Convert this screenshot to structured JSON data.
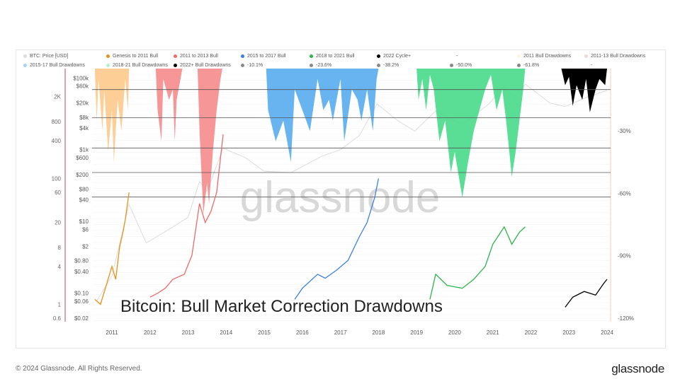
{
  "chart_data": {
    "type": "area",
    "title": "Bitcoin: Bull Market Correction Drawdowns",
    "watermark": "glassnode",
    "legend": [
      {
        "name": "BTC: Price [USD]",
        "color": "#dddddd"
      },
      {
        "name": "Genesis to 2011 Bull",
        "color": "#e8911c"
      },
      {
        "name": "2011 to 2013 Bull",
        "color": "#ec6a6a"
      },
      {
        "name": "2015 to 2017 Bull",
        "color": "#3d7fde"
      },
      {
        "name": "2018 to 2021 Bull",
        "color": "#2cb34a"
      },
      {
        "name": "2022 Cycle+",
        "color": "#000000"
      },
      {
        "name": "-",
        "color": "#ffffff"
      },
      {
        "name": "2011 Bull Drawdowns",
        "color": "#fdf3d8"
      },
      {
        "name": "2011-13 Bull Drawdowns",
        "color": "#fbd3d3"
      },
      {
        "name": "2015-17 Bull Drawdowns",
        "color": "#a9d2f5"
      },
      {
        "name": "2018-21 Bull Drawdowns",
        "color": "#b6f0cb"
      },
      {
        "name": "2022+ Bull Drawdowns",
        "color": "#000000"
      },
      {
        "name": "-10.1%",
        "color": "#888888"
      },
      {
        "name": "-23.6%",
        "color": "#888888"
      },
      {
        "name": "-38.2%",
        "color": "#888888"
      },
      {
        "name": "-50.0%",
        "color": "#888888"
      },
      {
        "name": "-61.8%",
        "color": "#888888"
      },
      {
        "name": "-",
        "color": "#ffffff"
      }
    ],
    "x_ticks": [
      "2011",
      "2012",
      "2013",
      "2014",
      "2015",
      "2016",
      "2017",
      "2018",
      "2019",
      "2020",
      "2021",
      "2022",
      "2023",
      "2024"
    ],
    "y_left_multiple_ticks": [
      "2K",
      "800",
      "400",
      "100",
      "60",
      "20",
      "8",
      "4",
      "1",
      "0.6"
    ],
    "y_left_multiple_values": [
      2000,
      800,
      400,
      100,
      60,
      20,
      8,
      4,
      1,
      0.6
    ],
    "y_price_ticks": [
      "$100k",
      "$60k",
      "$20k",
      "$8k",
      "$4k",
      "$1k",
      "$600",
      "$200",
      "$80",
      "$40",
      "$10",
      "$6",
      "$2",
      "$0.80",
      "$0.40",
      "$0.10",
      "$0.06",
      "$0.02"
    ],
    "y_price_values": [
      100000,
      60000,
      20000,
      8000,
      4000,
      1000,
      600,
      200,
      80,
      40,
      10,
      6,
      2,
      0.8,
      0.4,
      0.1,
      0.06,
      0.02
    ],
    "y_right_ticks": [
      "-30%",
      "-60%",
      "-90%",
      "-120%"
    ],
    "y_right_values": [
      -30,
      -60,
      -90,
      -120
    ],
    "fib_levels": [
      -10.1,
      -23.6,
      -38.2,
      -50.0,
      -61.8
    ],
    "price": [
      [
        2010.6,
        0.06
      ],
      [
        2011.0,
        0.3
      ],
      [
        2011.45,
        30
      ],
      [
        2011.9,
        2.5
      ],
      [
        2012.5,
        6
      ],
      [
        2013.0,
        13
      ],
      [
        2013.3,
        130
      ],
      [
        2013.5,
        70
      ],
      [
        2013.92,
        1100
      ],
      [
        2014.5,
        600
      ],
      [
        2015.0,
        250
      ],
      [
        2015.7,
        230
      ],
      [
        2016.5,
        650
      ],
      [
        2017.0,
        1000
      ],
      [
        2017.5,
        2500
      ],
      [
        2017.96,
        19000
      ],
      [
        2018.5,
        6500
      ],
      [
        2018.95,
        3300
      ],
      [
        2019.5,
        12000
      ],
      [
        2020.2,
        5000
      ],
      [
        2020.9,
        19000
      ],
      [
        2021.3,
        60000
      ],
      [
        2021.55,
        30000
      ],
      [
        2021.86,
        67000
      ],
      [
        2022.5,
        20000
      ],
      [
        2022.9,
        16000
      ],
      [
        2023.5,
        30000
      ],
      [
        2024.0,
        45000
      ]
    ],
    "cycles": [
      {
        "name": "Genesis to 2011 Bull",
        "color": "#e8911c",
        "points": [
          [
            2010.55,
            1.2
          ],
          [
            2010.7,
            1
          ],
          [
            2010.85,
            2
          ],
          [
            2011.0,
            4
          ],
          [
            2011.1,
            2.5
          ],
          [
            2011.2,
            8
          ],
          [
            2011.3,
            15
          ],
          [
            2011.35,
            22
          ],
          [
            2011.45,
            60
          ]
        ]
      },
      {
        "name": "2011 to 2013 Bull",
        "color": "#ec6a6a",
        "points": [
          [
            2012.0,
            1.3
          ],
          [
            2012.2,
            1.5
          ],
          [
            2012.4,
            1.8
          ],
          [
            2012.6,
            2.5
          ],
          [
            2012.9,
            3
          ],
          [
            2013.1,
            6
          ],
          [
            2013.3,
            40
          ],
          [
            2013.45,
            20
          ],
          [
            2013.6,
            30
          ],
          [
            2013.75,
            60
          ],
          [
            2013.92,
            500
          ]
        ]
      },
      {
        "name": "2015 to 2017 Bull",
        "color": "#3d7fde",
        "points": [
          [
            2015.8,
            1.2
          ],
          [
            2016.0,
            1.8
          ],
          [
            2016.4,
            3
          ],
          [
            2016.6,
            2.6
          ],
          [
            2016.9,
            3.5
          ],
          [
            2017.2,
            5
          ],
          [
            2017.5,
            12
          ],
          [
            2017.7,
            20
          ],
          [
            2017.9,
            50
          ],
          [
            2018.0,
            100
          ]
        ]
      },
      {
        "name": "2018 to 2021 Bull",
        "color": "#2cb34a",
        "points": [
          [
            2019.35,
            1.2
          ],
          [
            2019.5,
            3
          ],
          [
            2019.8,
            2
          ],
          [
            2020.2,
            1.8
          ],
          [
            2020.5,
            2.5
          ],
          [
            2020.8,
            4
          ],
          [
            2021.0,
            9
          ],
          [
            2021.3,
            17
          ],
          [
            2021.5,
            9
          ],
          [
            2021.7,
            14
          ],
          [
            2021.85,
            17
          ]
        ]
      },
      {
        "name": "2022 Cycle+",
        "color": "#000000",
        "points": [
          [
            2022.9,
            0.9
          ],
          [
            2023.1,
            1.3
          ],
          [
            2023.4,
            1.6
          ],
          [
            2023.7,
            1.4
          ],
          [
            2023.9,
            2.1
          ],
          [
            2024.0,
            2.5
          ]
        ]
      }
    ],
    "drawdowns": [
      {
        "name": "2011 Bull Drawdowns",
        "color": "#fdc98a",
        "points": [
          [
            2010.55,
            0
          ],
          [
            2010.6,
            -25
          ],
          [
            2010.65,
            -5
          ],
          [
            2010.75,
            -30
          ],
          [
            2010.8,
            -10
          ],
          [
            2010.9,
            -40
          ],
          [
            2011.0,
            -20
          ],
          [
            2011.05,
            -45
          ],
          [
            2011.15,
            -15
          ],
          [
            2011.25,
            -30
          ],
          [
            2011.35,
            -5
          ],
          [
            2011.42,
            -20
          ],
          [
            2011.45,
            0
          ]
        ]
      },
      {
        "name": "2011-13 Bull Drawdowns",
        "color": "#f58b8b",
        "points": [
          [
            2012.15,
            0
          ],
          [
            2012.2,
            -20
          ],
          [
            2012.3,
            -35
          ],
          [
            2012.35,
            -5
          ],
          [
            2012.5,
            -15
          ],
          [
            2012.6,
            -10
          ],
          [
            2012.65,
            -35
          ],
          [
            2012.7,
            -15
          ],
          [
            2012.8,
            -5
          ],
          [
            2012.85,
            0
          ],
          [
            2013.25,
            0
          ],
          [
            2013.3,
            -30
          ],
          [
            2013.4,
            -70
          ],
          [
            2013.5,
            -55
          ],
          [
            2013.55,
            -65
          ],
          [
            2013.65,
            -40
          ],
          [
            2013.75,
            -20
          ],
          [
            2013.85,
            -5
          ],
          [
            2013.9,
            0
          ]
        ]
      },
      {
        "name": "2015-17 Bull Drawdowns",
        "color": "#58acef",
        "points": [
          [
            2015.05,
            0
          ],
          [
            2015.1,
            -20
          ],
          [
            2015.3,
            -35
          ],
          [
            2015.5,
            -25
          ],
          [
            2015.7,
            -45
          ],
          [
            2015.8,
            -10
          ],
          [
            2016.0,
            -20
          ],
          [
            2016.2,
            -30
          ],
          [
            2016.4,
            -5
          ],
          [
            2016.55,
            -20
          ],
          [
            2016.7,
            -15
          ],
          [
            2016.8,
            -25
          ],
          [
            2017.0,
            -5
          ],
          [
            2017.1,
            -35
          ],
          [
            2017.3,
            -10
          ],
          [
            2017.45,
            -15
          ],
          [
            2017.55,
            -25
          ],
          [
            2017.7,
            -10
          ],
          [
            2017.85,
            -30
          ],
          [
            2017.95,
            -5
          ],
          [
            2018.0,
            0
          ]
        ]
      },
      {
        "name": "2018-21 Bull Drawdowns",
        "color": "#48d98a",
        "points": [
          [
            2019.0,
            0
          ],
          [
            2019.05,
            -15
          ],
          [
            2019.15,
            -5
          ],
          [
            2019.25,
            -20
          ],
          [
            2019.35,
            -3
          ],
          [
            2019.45,
            -10
          ],
          [
            2019.6,
            -35
          ],
          [
            2019.75,
            -25
          ],
          [
            2019.9,
            -50
          ],
          [
            2020.0,
            -40
          ],
          [
            2020.2,
            -62
          ],
          [
            2020.35,
            -45
          ],
          [
            2020.5,
            -30
          ],
          [
            2020.65,
            -20
          ],
          [
            2020.8,
            -10
          ],
          [
            2020.95,
            -3
          ],
          [
            2021.1,
            -20
          ],
          [
            2021.25,
            -10
          ],
          [
            2021.35,
            -25
          ],
          [
            2021.5,
            -52
          ],
          [
            2021.6,
            -40
          ],
          [
            2021.7,
            -25
          ],
          [
            2021.8,
            -10
          ],
          [
            2021.85,
            0
          ]
        ]
      },
      {
        "name": "2022+ Bull Drawdowns",
        "color": "#000000",
        "points": [
          [
            2022.8,
            0
          ],
          [
            2022.9,
            -8
          ],
          [
            2023.0,
            -4
          ],
          [
            2023.1,
            -18
          ],
          [
            2023.2,
            -8
          ],
          [
            2023.35,
            -15
          ],
          [
            2023.45,
            -5
          ],
          [
            2023.55,
            -21
          ],
          [
            2023.7,
            -10
          ],
          [
            2023.8,
            -5
          ],
          [
            2023.95,
            -8
          ],
          [
            2024.0,
            0
          ]
        ]
      }
    ]
  },
  "footer": {
    "copyright": "© 2024 Glassnode. All Rights Reserved.",
    "brand": "glassnode"
  }
}
